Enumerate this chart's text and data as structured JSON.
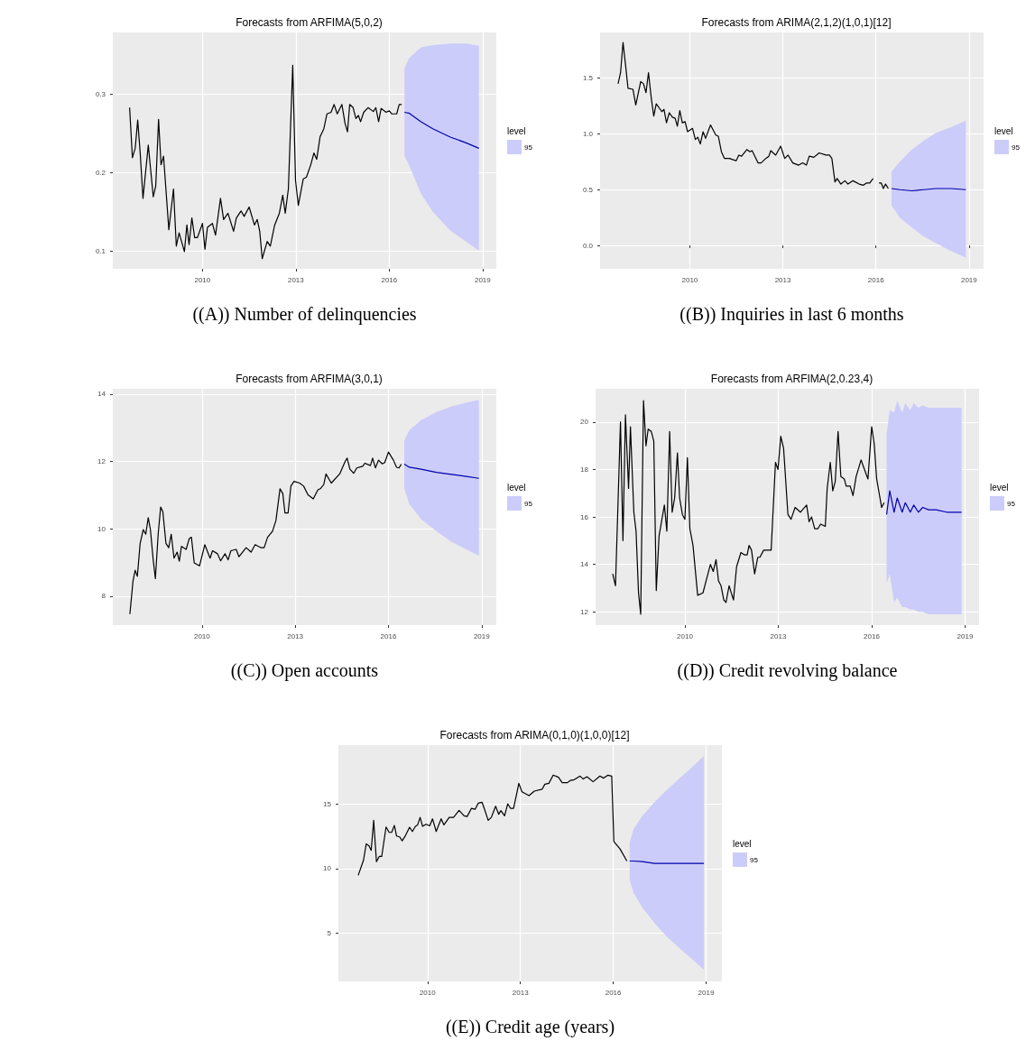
{
  "chart_data": [
    {
      "type": "line",
      "title": "Forecasts from ARFIMA(5,0,2)",
      "annotations": [
        "((A)) Number of delinquencies"
      ],
      "legend_title": "level",
      "legend": "right",
      "grid": true,
      "xlim": [
        2007.12,
        2019.44
      ],
      "xticks": [
        2010,
        2013,
        2016,
        2019
      ],
      "ylim": [
        0.077,
        0.379
      ],
      "yticks": [
        0.1,
        0.2,
        0.3
      ],
      "series": [
        {
          "color": "#000000",
          "x": [
            2007.66,
            2007.75,
            2007.84,
            2007.92,
            2008.0,
            2008.09,
            2008.26,
            2008.42,
            2008.5,
            2008.59,
            2008.67,
            2008.75,
            2008.92,
            2009.07,
            2009.16,
            2009.25,
            2009.42,
            2009.5,
            2009.57,
            2009.66,
            2009.75,
            2009.84,
            2010.0,
            2010.08,
            2010.16,
            2010.32,
            2010.42,
            2010.58,
            2010.68,
            2010.82,
            2011.0,
            2011.09,
            2011.24,
            2011.34,
            2011.5,
            2011.67,
            2011.76,
            2011.84,
            2011.92,
            2012.08,
            2012.18,
            2012.32,
            2012.47,
            2012.58,
            2012.66,
            2012.76,
            2012.9,
            2012.99,
            2013.08,
            2013.24,
            2013.34,
            2013.48,
            2013.58,
            2013.67,
            2013.78,
            2013.9,
            2014.0,
            2014.13,
            2014.23,
            2014.33,
            2014.48,
            2014.58,
            2014.66,
            2014.73,
            2014.84,
            2014.93,
            2015.01,
            2015.08,
            2015.18,
            2015.32,
            2015.49,
            2015.57,
            2015.66,
            2015.74,
            2015.9,
            2016.0,
            2016.08,
            2016.24,
            2016.32,
            2016.4
          ],
          "values": [
            0.283,
            0.219,
            0.231,
            0.267,
            0.225,
            0.167,
            0.235,
            0.169,
            0.183,
            0.268,
            0.21,
            0.221,
            0.127,
            0.179,
            0.106,
            0.123,
            0.099,
            0.133,
            0.108,
            0.142,
            0.117,
            0.117,
            0.135,
            0.102,
            0.13,
            0.135,
            0.12,
            0.167,
            0.14,
            0.148,
            0.125,
            0.142,
            0.151,
            0.144,
            0.156,
            0.133,
            0.14,
            0.125,
            0.09,
            0.112,
            0.106,
            0.133,
            0.148,
            0.171,
            0.148,
            0.179,
            0.337,
            0.19,
            0.158,
            0.192,
            0.194,
            0.21,
            0.225,
            0.217,
            0.246,
            0.256,
            0.275,
            0.277,
            0.287,
            0.275,
            0.287,
            0.263,
            0.252,
            0.287,
            0.283,
            0.269,
            0.273,
            0.265,
            0.277,
            0.283,
            0.278,
            0.283,
            0.265,
            0.282,
            0.277,
            0.279,
            0.275,
            0.275,
            0.287,
            0.287
          ]
        },
        {
          "name": "95",
          "color": "#0000aa",
          "x": [
            2016.49,
            2016.63,
            2017.02,
            2017.4,
            2017.98,
            2018.47,
            2018.88
          ],
          "values": [
            0.277,
            0.276,
            0.265,
            0.256,
            0.245,
            0.238,
            0.231
          ],
          "lower": [
            0.221,
            0.21,
            0.173,
            0.15,
            0.125,
            0.112,
            0.1
          ],
          "upper": [
            0.333,
            0.346,
            0.36,
            0.363,
            0.365,
            0.365,
            0.362
          ]
        }
      ]
    },
    {
      "type": "line",
      "title": "Forecasts from ARIMA(2,1,2)(1,0,1)[12]",
      "annotations": [
        "((B)) Inquiries in last 6 months"
      ],
      "legend_title": "level",
      "legend": "right",
      "grid": true,
      "xlim": [
        2007.11,
        2019.47
      ],
      "xticks": [
        2010,
        2013,
        2016,
        2019
      ],
      "ylim": [
        -0.21,
        1.91
      ],
      "yticks": [
        {
          "value": 0,
          "label": "0.0"
        },
        {
          "value": 0.5,
          "label": "0.5"
        },
        {
          "value": 1,
          "label": "1.0"
        },
        {
          "value": 1.5,
          "label": "1.5"
        }
      ],
      "series": [
        {
          "color": "#000000",
          "x": [
            2007.69,
            2007.77,
            2007.85,
            2007.93,
            2008.01,
            2008.17,
            2008.26,
            2008.42,
            2008.51,
            2008.59,
            2008.67,
            2008.76,
            2008.84,
            2008.92,
            2009.1,
            2009.17,
            2009.25,
            2009.34,
            2009.44,
            2009.53,
            2009.6,
            2009.68,
            2009.76,
            2009.85,
            2009.93,
            2010.09,
            2010.18,
            2010.26,
            2010.34,
            2010.43,
            2010.51,
            2010.67,
            2010.84,
            2010.92,
            2011.02,
            2011.12,
            2011.28,
            2011.38,
            2011.5,
            2011.58,
            2011.67,
            2011.84,
            2011.94,
            2012.01,
            2012.2,
            2012.3,
            2012.45,
            2012.55,
            2012.61,
            2012.77,
            2012.93,
            2013.06,
            2013.17,
            2013.32,
            2013.51,
            2013.64,
            2013.76,
            2013.85,
            2014.0,
            2014.17,
            2014.39,
            2014.5,
            2014.58,
            2014.68,
            2014.75,
            2014.87,
            2015.0,
            2015.1,
            2015.26,
            2015.46,
            2015.6,
            2015.7,
            2015.8,
            2015.91,
            2016.0,
            2016.1,
            2016.17,
            2016.24,
            2016.31,
            2016.4
          ],
          "values": [
            1.45,
            1.55,
            1.82,
            1.62,
            1.41,
            1.4,
            1.26,
            1.47,
            1.45,
            1.37,
            1.55,
            1.32,
            1.16,
            1.27,
            1.2,
            1.22,
            1.1,
            1.19,
            1.15,
            1.14,
            1.07,
            1.21,
            1.1,
            1.11,
            1.02,
            1.05,
            0.95,
            0.97,
            0.91,
            1.02,
            0.96,
            1.08,
            0.99,
            0.98,
            0.84,
            0.78,
            0.78,
            0.77,
            0.76,
            0.81,
            0.8,
            0.86,
            0.84,
            0.85,
            0.74,
            0.74,
            0.78,
            0.8,
            0.85,
            0.81,
            0.89,
            0.78,
            0.81,
            0.74,
            0.72,
            0.74,
            0.72,
            0.8,
            0.79,
            0.83,
            0.81,
            0.81,
            0.78,
            0.57,
            0.6,
            0.55,
            0.58,
            0.55,
            0.58,
            0.55,
            0.54,
            0.56,
            0.56,
            0.6,
            null,
            0.56,
            0.56,
            0.51,
            0.55,
            0.51
          ]
        },
        {
          "name": "95",
          "color": "#0000aa",
          "x": [
            2016.5,
            2016.77,
            2017.16,
            2017.54,
            2017.93,
            2018.42,
            2018.9
          ],
          "values": [
            0.51,
            0.5,
            0.49,
            0.5,
            0.51,
            0.51,
            0.5
          ],
          "lower": [
            0.36,
            0.25,
            0.16,
            0.08,
            0.02,
            -0.05,
            -0.11
          ],
          "upper": [
            0.66,
            0.75,
            0.86,
            0.94,
            1.01,
            1.06,
            1.12
          ]
        }
      ]
    },
    {
      "type": "line",
      "title": "Forecasts from ARFIMA(3,0,1)",
      "annotations": [
        "((C)) Open accounts"
      ],
      "legend_title": "level",
      "legend": "right",
      "grid": true,
      "xlim": [
        2007.13,
        2019.47
      ],
      "xticks": [
        2010,
        2013,
        2016,
        2019
      ],
      "ylim": [
        7.14,
        14.16
      ],
      "yticks": [
        8,
        10,
        12,
        14
      ],
      "series": [
        {
          "color": "#000000",
          "x": [
            2007.68,
            2007.78,
            2007.85,
            2007.92,
            2008.01,
            2008.11,
            2008.19,
            2008.27,
            2008.34,
            2008.43,
            2008.5,
            2008.59,
            2008.67,
            2008.74,
            2008.84,
            2008.93,
            2009.01,
            2009.1,
            2009.2,
            2009.27,
            2009.34,
            2009.49,
            2009.59,
            2009.66,
            2009.75,
            2009.92,
            2010.09,
            2010.26,
            2010.34,
            2010.5,
            2010.6,
            2010.74,
            2010.84,
            2010.93,
            2011.1,
            2011.19,
            2011.42,
            2011.58,
            2011.71,
            2011.9,
            2012.0,
            2012.11,
            2012.27,
            2012.38,
            2012.51,
            2012.6,
            2012.67,
            2012.77,
            2012.86,
            2012.96,
            2013.14,
            2013.27,
            2013.41,
            2013.58,
            2013.73,
            2013.82,
            2013.92,
            2013.99,
            2014.16,
            2014.43,
            2014.6,
            2014.67,
            2014.76,
            2014.88,
            2014.98,
            2015.17,
            2015.24,
            2015.42,
            2015.49,
            2015.58,
            2015.68,
            2015.8,
            2015.88,
            2016.0,
            2016.16,
            2016.26,
            2016.34,
            2016.41
          ],
          "values": [
            7.47,
            8.45,
            8.77,
            8.59,
            9.57,
            9.98,
            9.84,
            10.33,
            9.98,
            9.08,
            8.52,
            9.84,
            10.65,
            10.51,
            9.57,
            9.44,
            9.84,
            9.13,
            9.31,
            9.04,
            9.48,
            9.39,
            9.71,
            9.75,
            8.99,
            8.9,
            9.53,
            9.13,
            9.35,
            9.26,
            9.05,
            9.26,
            9.08,
            9.35,
            9.39,
            9.17,
            9.44,
            9.31,
            9.53,
            9.44,
            9.44,
            9.75,
            9.93,
            10.25,
            11.19,
            11.05,
            10.47,
            10.47,
            11.27,
            11.41,
            11.36,
            11.27,
            11.01,
            10.89,
            11.16,
            11.2,
            11.32,
            11.63,
            11.36,
            11.63,
            11.99,
            12.1,
            11.77,
            11.65,
            11.81,
            11.86,
            11.95,
            11.88,
            12.1,
            11.81,
            12.04,
            11.93,
            11.97,
            12.28,
            12.04,
            11.83,
            11.81,
            11.92
          ]
        },
        {
          "name": "95",
          "color": "#0000aa",
          "x": [
            2016.51,
            2016.67,
            2017.05,
            2017.54,
            2018.02,
            2018.5,
            2018.91
          ],
          "values": [
            11.92,
            11.83,
            11.77,
            11.68,
            11.62,
            11.56,
            11.5
          ],
          "lower": [
            11.19,
            10.74,
            10.29,
            9.93,
            9.62,
            9.39,
            9.2
          ],
          "upper": [
            12.62,
            12.93,
            13.23,
            13.47,
            13.63,
            13.75,
            13.83
          ]
        }
      ]
    },
    {
      "type": "line",
      "title": "Forecasts from ARFIMA(2,0.23,4)",
      "annotations": [
        "((D)) Credit revolving balance"
      ],
      "legend_title": "level",
      "legend": "right",
      "grid": true,
      "xlim": [
        2007.13,
        2019.45
      ],
      "xticks": [
        2010,
        2013,
        2016,
        2019
      ],
      "ylim": [
        11.44,
        21.4
      ],
      "yticks": [
        12,
        14,
        16,
        18,
        20
      ],
      "series": [
        {
          "color": "#000000",
          "x": [
            2007.68,
            2007.77,
            2007.93,
            2008.01,
            2008.09,
            2008.19,
            2008.25,
            2008.36,
            2008.43,
            2008.51,
            2008.58,
            2008.67,
            2008.75,
            2008.82,
            2008.92,
            2009.0,
            2009.08,
            2009.17,
            2009.34,
            2009.42,
            2009.51,
            2009.59,
            2009.67,
            2009.76,
            2009.83,
            2009.92,
            2010.0,
            2010.08,
            2010.16,
            2010.26,
            2010.41,
            2010.58,
            2010.7,
            2010.82,
            2010.91,
            2011.0,
            2011.08,
            2011.16,
            2011.25,
            2011.32,
            2011.42,
            2011.56,
            2011.66,
            2011.8,
            2011.92,
            2012.0,
            2012.06,
            2012.14,
            2012.24,
            2012.34,
            2012.41,
            2012.53,
            2012.64,
            2012.77,
            2012.91,
            2012.99,
            2013.08,
            2013.17,
            2013.31,
            2013.41,
            2013.54,
            2013.71,
            2013.91,
            2013.99,
            2014.07,
            2014.17,
            2014.27,
            2014.36,
            2014.51,
            2014.57,
            2014.67,
            2014.75,
            2014.83,
            2014.92,
            2015.01,
            2015.12,
            2015.18,
            2015.31,
            2015.4,
            2015.5,
            2015.66,
            2015.74,
            2015.88,
            2016.0,
            2016.08,
            2016.16,
            2016.24,
            2016.32,
            2016.4
          ],
          "values": [
            13.6,
            13.1,
            20.0,
            15.0,
            20.3,
            17.2,
            19.8,
            16.2,
            15.4,
            12.8,
            11.9,
            20.9,
            19.0,
            19.7,
            19.6,
            19.2,
            12.9,
            15.2,
            16.5,
            15.4,
            19.6,
            16.2,
            16.8,
            18.7,
            16.8,
            16.1,
            15.9,
            18.5,
            15.5,
            14.8,
            12.7,
            12.8,
            13.4,
            14.0,
            13.7,
            14.2,
            13.3,
            13.1,
            12.5,
            12.4,
            13.1,
            12.5,
            13.9,
            14.5,
            14.4,
            14.4,
            14.8,
            14.6,
            13.6,
            14.3,
            14.3,
            14.6,
            14.6,
            14.6,
            18.3,
            18.0,
            19.4,
            18.9,
            16.1,
            15.9,
            16.4,
            16.2,
            16.5,
            15.8,
            16.0,
            15.5,
            15.5,
            15.7,
            15.6,
            17.2,
            18.3,
            17.1,
            17.5,
            19.6,
            17.7,
            17.6,
            17.3,
            17.3,
            16.9,
            17.7,
            18.4,
            18.1,
            17.6,
            19.8,
            19.1,
            17.6,
            17.0,
            16.4,
            16.6
          ]
        },
        {
          "name": "95",
          "color": "#0000aa",
          "x": [
            2016.48,
            2016.58,
            2016.72,
            2016.82,
            2016.98,
            2017.08,
            2017.24,
            2017.35,
            2017.5,
            2017.64,
            2017.83,
            2018.07,
            2018.41,
            2018.89
          ],
          "values": [
            16.1,
            17.1,
            16.2,
            16.8,
            16.2,
            16.6,
            16.2,
            16.5,
            16.2,
            16.4,
            16.3,
            16.3,
            16.2,
            16.2
          ],
          "lower": [
            13.2,
            13.6,
            12.4,
            12.6,
            12.2,
            12.2,
            12.1,
            12.1,
            12.0,
            12.0,
            11.9,
            11.9,
            11.9,
            11.9
          ],
          "upper": [
            19.5,
            20.5,
            20.4,
            20.9,
            20.4,
            20.8,
            20.5,
            20.8,
            20.6,
            20.7,
            20.6,
            20.6,
            20.6,
            20.6
          ]
        }
      ]
    },
    {
      "type": "line",
      "title": "Forecasts from ARIMA(0,1,0)(1,0,0)[12]",
      "annotations": [
        "((E)) Credit age (years)"
      ],
      "legend_title": "level",
      "legend": "right",
      "grid": true,
      "xlim": [
        2007.12,
        2019.51
      ],
      "xticks": [
        2010,
        2013,
        2016,
        2019
      ],
      "ylim": [
        1.28,
        19.53
      ],
      "yticks": [
        5,
        10,
        15
      ],
      "series": [
        {
          "color": "#000000",
          "x": [
            2007.76,
            2007.93,
            2008.02,
            2008.11,
            2008.18,
            2008.26,
            2008.35,
            2008.44,
            2008.52,
            2008.66,
            2008.76,
            2008.84,
            2008.93,
            2009.0,
            2009.1,
            2009.18,
            2009.29,
            2009.42,
            2009.51,
            2009.61,
            2009.68,
            2009.76,
            2009.84,
            2009.95,
            2010.07,
            2010.16,
            2010.28,
            2010.44,
            2010.53,
            2010.7,
            2010.84,
            2011.02,
            2011.18,
            2011.28,
            2011.42,
            2011.54,
            2011.64,
            2011.76,
            2011.84,
            2011.96,
            2012.06,
            2012.2,
            2012.3,
            2012.37,
            2012.49,
            2012.59,
            2012.68,
            2012.78,
            2012.95,
            2013.05,
            2013.28,
            2013.45,
            2013.7,
            2013.79,
            2013.92,
            2014.06,
            2014.23,
            2014.35,
            2014.52,
            2014.62,
            2014.74,
            2014.93,
            2015.03,
            2015.15,
            2015.35,
            2015.57,
            2015.69,
            2015.83,
            2015.95,
            2016.02,
            2016.22,
            2016.44
          ],
          "values": [
            9.47,
            10.63,
            11.91,
            11.74,
            11.4,
            13.72,
            10.53,
            10.93,
            10.93,
            13.21,
            12.79,
            12.79,
            13.33,
            12.51,
            12.44,
            12.14,
            12.56,
            13.19,
            12.86,
            13.26,
            13.37,
            13.95,
            13.26,
            13.42,
            13.3,
            13.84,
            12.86,
            13.84,
            13.37,
            13.95,
            13.95,
            14.49,
            14.07,
            14.02,
            14.65,
            14.58,
            15.05,
            15.12,
            14.58,
            13.72,
            13.95,
            14.81,
            14.19,
            14.47,
            14.07,
            15.0,
            14.65,
            14.65,
            16.58,
            15.93,
            15.63,
            15.98,
            16.12,
            16.51,
            16.58,
            17.21,
            17.05,
            16.63,
            16.63,
            16.81,
            16.86,
            17.14,
            16.91,
            17.09,
            16.7,
            17.14,
            16.98,
            17.21,
            17.14,
            12.09,
            11.51,
            10.58
          ]
        },
        {
          "name": "95",
          "color": "#0000aa",
          "x": [
            2016.53,
            2016.65,
            2016.94,
            2017.33,
            2017.72,
            2018.2,
            2018.59,
            2018.93
          ],
          "values": [
            10.58,
            10.58,
            10.53,
            10.4,
            10.4,
            10.4,
            10.4,
            10.4
          ],
          "lower": [
            9.14,
            8.14,
            6.98,
            5.81,
            4.77,
            3.72,
            2.91,
            2.16
          ],
          "upper": [
            12.02,
            13.02,
            14.07,
            15.12,
            16.05,
            17.09,
            17.91,
            18.72
          ]
        }
      ]
    }
  ]
}
